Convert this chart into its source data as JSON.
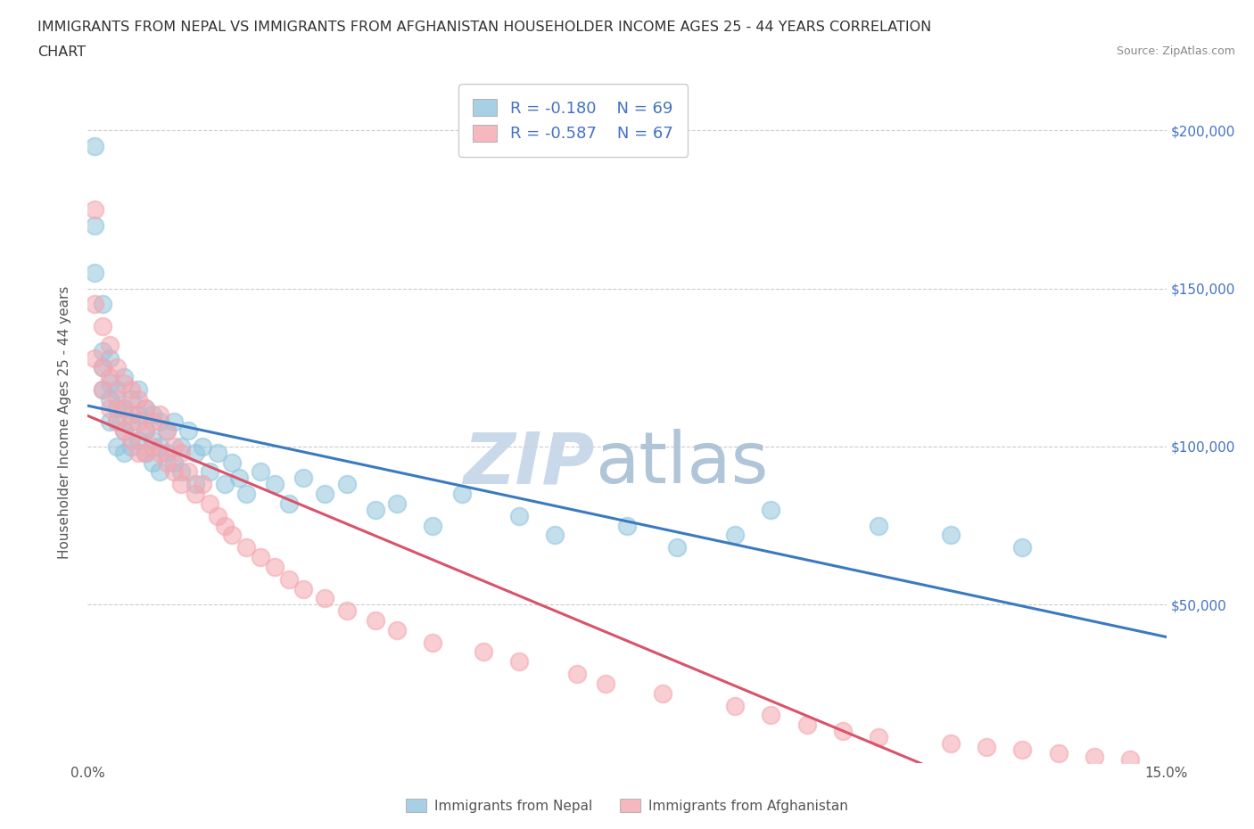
{
  "title_line1": "IMMIGRANTS FROM NEPAL VS IMMIGRANTS FROM AFGHANISTAN HOUSEHOLDER INCOME AGES 25 - 44 YEARS CORRELATION",
  "title_line2": "CHART",
  "source_text": "Source: ZipAtlas.com",
  "ylabel": "Householder Income Ages 25 - 44 years",
  "xlim": [
    0.0,
    0.15
  ],
  "ylim": [
    0,
    215000
  ],
  "nepal_color": "#92c5de",
  "afghanistan_color": "#f4a6b0",
  "nepal_line_color": "#3a7abf",
  "afghanistan_line_color": "#d9536a",
  "nepal_R": -0.18,
  "nepal_N": 69,
  "afghanistan_R": -0.587,
  "afghanistan_N": 67,
  "legend_nepal": "Immigrants from Nepal",
  "legend_afghanistan": "Immigrants from Afghanistan",
  "nepal_x": [
    0.001,
    0.001,
    0.001,
    0.002,
    0.002,
    0.002,
    0.002,
    0.003,
    0.003,
    0.003,
    0.003,
    0.004,
    0.004,
    0.004,
    0.004,
    0.005,
    0.005,
    0.005,
    0.005,
    0.006,
    0.006,
    0.006,
    0.007,
    0.007,
    0.007,
    0.008,
    0.008,
    0.008,
    0.009,
    0.009,
    0.009,
    0.01,
    0.01,
    0.01,
    0.011,
    0.011,
    0.012,
    0.012,
    0.013,
    0.013,
    0.014,
    0.015,
    0.015,
    0.016,
    0.017,
    0.018,
    0.019,
    0.02,
    0.021,
    0.022,
    0.024,
    0.026,
    0.028,
    0.03,
    0.033,
    0.036,
    0.04,
    0.043,
    0.048,
    0.052,
    0.06,
    0.065,
    0.075,
    0.082,
    0.09,
    0.095,
    0.11,
    0.12,
    0.13
  ],
  "nepal_y": [
    195000,
    170000,
    155000,
    145000,
    130000,
    125000,
    118000,
    128000,
    120000,
    115000,
    108000,
    118000,
    112000,
    108000,
    100000,
    122000,
    112000,
    105000,
    98000,
    115000,
    108000,
    100000,
    118000,
    110000,
    102000,
    112000,
    105000,
    98000,
    110000,
    102000,
    95000,
    108000,
    100000,
    92000,
    105000,
    98000,
    108000,
    95000,
    100000,
    92000,
    105000,
    98000,
    88000,
    100000,
    92000,
    98000,
    88000,
    95000,
    90000,
    85000,
    92000,
    88000,
    82000,
    90000,
    85000,
    88000,
    80000,
    82000,
    75000,
    85000,
    78000,
    72000,
    75000,
    68000,
    72000,
    80000,
    75000,
    72000,
    68000
  ],
  "afghanistan_x": [
    0.001,
    0.001,
    0.001,
    0.002,
    0.002,
    0.002,
    0.003,
    0.003,
    0.003,
    0.004,
    0.004,
    0.004,
    0.005,
    0.005,
    0.005,
    0.006,
    0.006,
    0.006,
    0.007,
    0.007,
    0.007,
    0.008,
    0.008,
    0.008,
    0.009,
    0.009,
    0.01,
    0.01,
    0.011,
    0.011,
    0.012,
    0.012,
    0.013,
    0.013,
    0.014,
    0.015,
    0.016,
    0.017,
    0.018,
    0.019,
    0.02,
    0.022,
    0.024,
    0.026,
    0.028,
    0.03,
    0.033,
    0.036,
    0.04,
    0.043,
    0.048,
    0.055,
    0.06,
    0.068,
    0.072,
    0.08,
    0.09,
    0.095,
    0.1,
    0.105,
    0.11,
    0.12,
    0.125,
    0.13,
    0.135,
    0.14,
    0.145
  ],
  "afghanistan_y": [
    175000,
    145000,
    128000,
    138000,
    125000,
    118000,
    132000,
    122000,
    112000,
    125000,
    115000,
    108000,
    120000,
    112000,
    105000,
    118000,
    110000,
    102000,
    115000,
    108000,
    98000,
    112000,
    105000,
    98000,
    108000,
    100000,
    110000,
    98000,
    105000,
    95000,
    100000,
    92000,
    98000,
    88000,
    92000,
    85000,
    88000,
    82000,
    78000,
    75000,
    72000,
    68000,
    65000,
    62000,
    58000,
    55000,
    52000,
    48000,
    45000,
    42000,
    38000,
    35000,
    32000,
    28000,
    25000,
    22000,
    18000,
    15000,
    12000,
    10000,
    8000,
    6000,
    5000,
    4000,
    3000,
    2000,
    1000
  ]
}
